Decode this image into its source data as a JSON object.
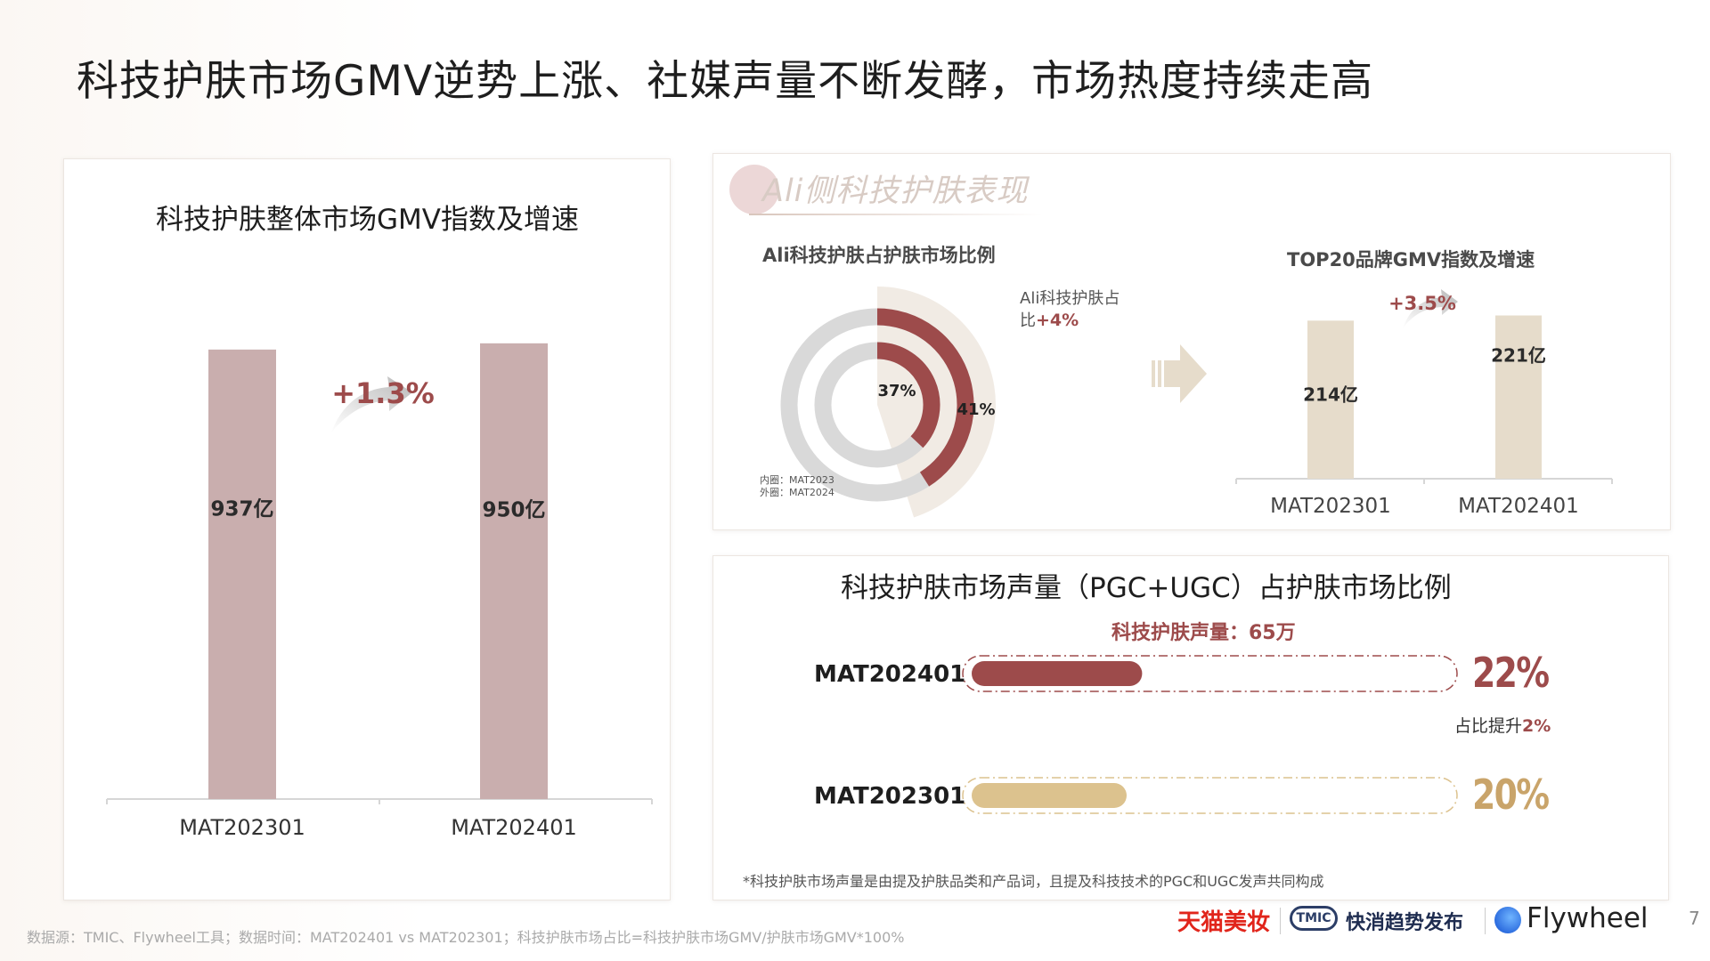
{
  "page": {
    "title": "科技护肤市场GMV逆势上涨、社媒声量不断发酵，市场热度持续走高",
    "page_number": "7",
    "source_note": "数据源：TMIC、Flywheel工具；数据时间：MAT202401 vs MAT202301；科技护肤市场占比=科技护肤市场GMV/护肤市场GMV*100%"
  },
  "logos": {
    "tmall": "天猫美妆",
    "tmic_badge": "TMIC",
    "tmic": "快消趋势发布",
    "flywheel": "Flywheel"
  },
  "left_panel": {
    "chart_title": "科技护肤整体市场GMV指数及增速"
  },
  "ali_section": {
    "title": "Ali侧科技护肤表现",
    "donut_title": "Ali科技护肤占护肤市场比例",
    "donut_annotation_line1": "Ali科技护肤占",
    "donut_annotation_line2_prefix": "比",
    "donut_annotation_value": "+4%",
    "inner_legend": "内圈：MAT2023",
    "outer_legend": "外圈：MAT2024",
    "top20_title": "TOP20品牌GMV指数及增速"
  },
  "voice_section": {
    "title": "科技护肤市场声量（PGC+UGC）占护肤市场比例",
    "volume_label": "科技护肤声量：65万",
    "share_rise_prefix": "占比提升",
    "share_rise_value": "2%",
    "footnote": "*科技护肤市场声量是由提及护肤品类和产品词，且提及科技技术的PGC和UGC发声共同构成"
  },
  "chart_data": [
    {
      "type": "bar",
      "title": "科技护肤整体市场GMV指数及增速",
      "categories": [
        "MAT202301",
        "MAT202401"
      ],
      "values": [
        937,
        950
      ],
      "value_labels": [
        "937亿",
        "950亿"
      ],
      "growth_label": "+1.3%",
      "ylim": [
        0,
        1150
      ],
      "color": "#c9aeae"
    },
    {
      "type": "pie",
      "subtype": "nested-donut",
      "title": "Ali科技护肤占护肤市场比例",
      "rings": [
        {
          "value": 37,
          "label": "37%"
        },
        {
          "value": 41,
          "label": "41%"
        }
      ],
      "colors": {
        "share": "#9d4b4b",
        "rest": "#d9d9d9",
        "highlight_bg": "#f1ebe4"
      }
    },
    {
      "type": "bar",
      "title": "TOP20品牌GMV指数及增速",
      "categories": [
        "MAT202301",
        "MAT202401"
      ],
      "values": [
        214,
        221
      ],
      "value_labels": [
        "214亿",
        "221亿"
      ],
      "growth_label": "+3.5%",
      "ylim": [
        0,
        265
      ],
      "color": "#e6dccb"
    },
    {
      "type": "bar",
      "orientation": "horizontal",
      "title": "科技护肤市场声量（PGC+UGC）占护肤市场比例",
      "categories": [
        "MAT202401",
        "MAT202301"
      ],
      "values": [
        22,
        20
      ],
      "value_labels": [
        "22%",
        "20%"
      ],
      "colors": [
        "#9d4b4b",
        "#dcc28e"
      ]
    }
  ]
}
